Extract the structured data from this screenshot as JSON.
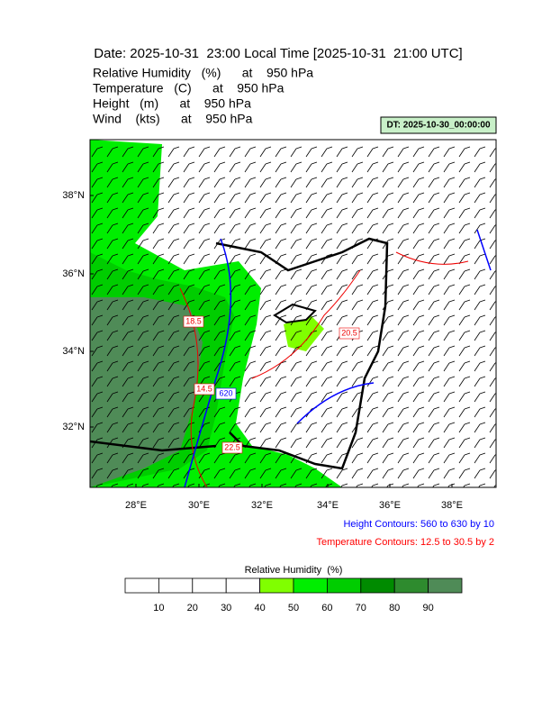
{
  "header": {
    "title": "Date: 2025-10-31  23:00 Local Time [2025-10-31  21:00 UTC]",
    "fields": [
      "Relative Humidity   (%)      at    950 hPa",
      "Temperature   (C)      at    950 hPa",
      "Height   (m)      at    950 hPa",
      "Wind    (kts)      at    950 hPa"
    ],
    "dt": "DT: 2025-10-30_00:00:00"
  },
  "map": {
    "lat_labels": [
      "38°N",
      "36°N",
      "34°N",
      "32°N"
    ],
    "lon_labels": [
      "28°E",
      "30°E",
      "32°E",
      "34°E",
      "36°E",
      "38°E"
    ],
    "contour_labels": [
      "18.5",
      "20.5",
      "14.5",
      "620",
      "22.5"
    ]
  },
  "notes": [
    "Height Contours: 560 to 630 by 10",
    "Temperature Contours: 12.5 to 30.5 by 2"
  ],
  "colorbar": {
    "title": "Relative Humidity  (%)",
    "labels": [
      "10",
      "20",
      "30",
      "40",
      "50",
      "60",
      "70",
      "80",
      "90"
    ],
    "colors": [
      "#ffffff",
      "#ffffff",
      "#ffffff",
      "#ffffff",
      "#80ff00",
      "#00ee00",
      "#00cd00",
      "#008b00",
      "#2e8b2e",
      "#4f8b57"
    ]
  }
}
